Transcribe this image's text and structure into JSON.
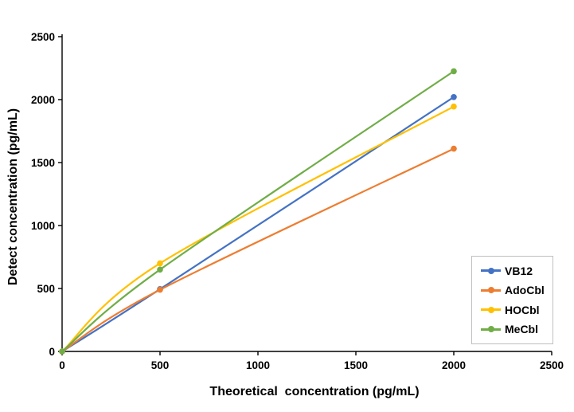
{
  "chart_data": {
    "type": "line",
    "line_style": "smooth",
    "grid": false,
    "x": [
      0,
      500,
      2000
    ],
    "series": [
      {
        "name": "VB12",
        "color": "#4472C4",
        "values": [
          0,
          495,
          2020
        ]
      },
      {
        "name": "AdoCbl",
        "color": "#ED7D31",
        "values": [
          0,
          490,
          1610
        ]
      },
      {
        "name": "HOCbl",
        "color": "#FFC000",
        "values": [
          0,
          700,
          1945
        ]
      },
      {
        "name": "MeCbl",
        "color": "#70AD47",
        "values": [
          0,
          650,
          2225
        ]
      }
    ],
    "xlabel": "Theoretical  concentration (pg/mL)",
    "ylabel": "Detect concentration (pg/mL)",
    "xlim": [
      0,
      2500
    ],
    "ylim": [
      0,
      2500
    ],
    "x_ticks": [
      0,
      500,
      1000,
      1500,
      2000,
      2500
    ],
    "y_ticks": [
      0,
      500,
      1000,
      1500,
      2000,
      2500
    ],
    "legend_position": "right-middle",
    "axis_color": "#000000",
    "tick_label_color": "#000000",
    "legend_border_color": "#bfbfbf",
    "background_color": "#ffffff"
  }
}
